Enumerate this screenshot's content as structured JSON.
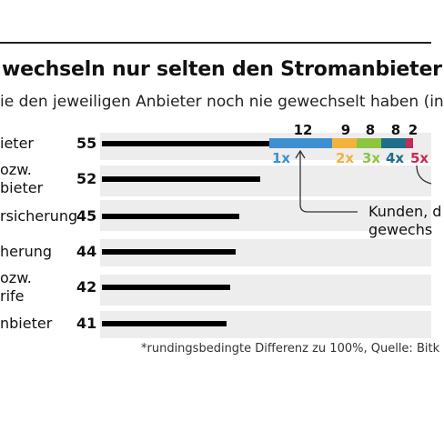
{
  "header": {
    "title": "wechseln nur selten den Stromanbieter",
    "subtitle": "ie den jeweiligen Anbieter noch nie gewechselt haben (in"
  },
  "chart_data": {
    "type": "bar",
    "orientation": "horizontal",
    "categories": [
      "ieter",
      "ozw.\nbieter",
      "rsicherung",
      "herung",
      "ozw.\nrife",
      "nbieter"
    ],
    "values": [
      55,
      52,
      45,
      44,
      42,
      41
    ],
    "breakdown": {
      "segments": [
        {
          "value": "12",
          "label": "1x",
          "color": "#3d8fd1"
        },
        {
          "value": "9",
          "label": "2x",
          "color": "#f3b23c"
        },
        {
          "value": "8",
          "label": "3x",
          "color": "#8cc63f"
        },
        {
          "value": "8",
          "label": "4x",
          "color": "#1e6e8a"
        },
        {
          "value": "2",
          "label": "5x",
          "color": "#c42b57"
        }
      ],
      "annotation": [
        "Kunden, d",
        "gewechs"
      ]
    }
  },
  "footnote": "*rundingsbedingte Differenz zu 100%, Quelle: Bitk"
}
